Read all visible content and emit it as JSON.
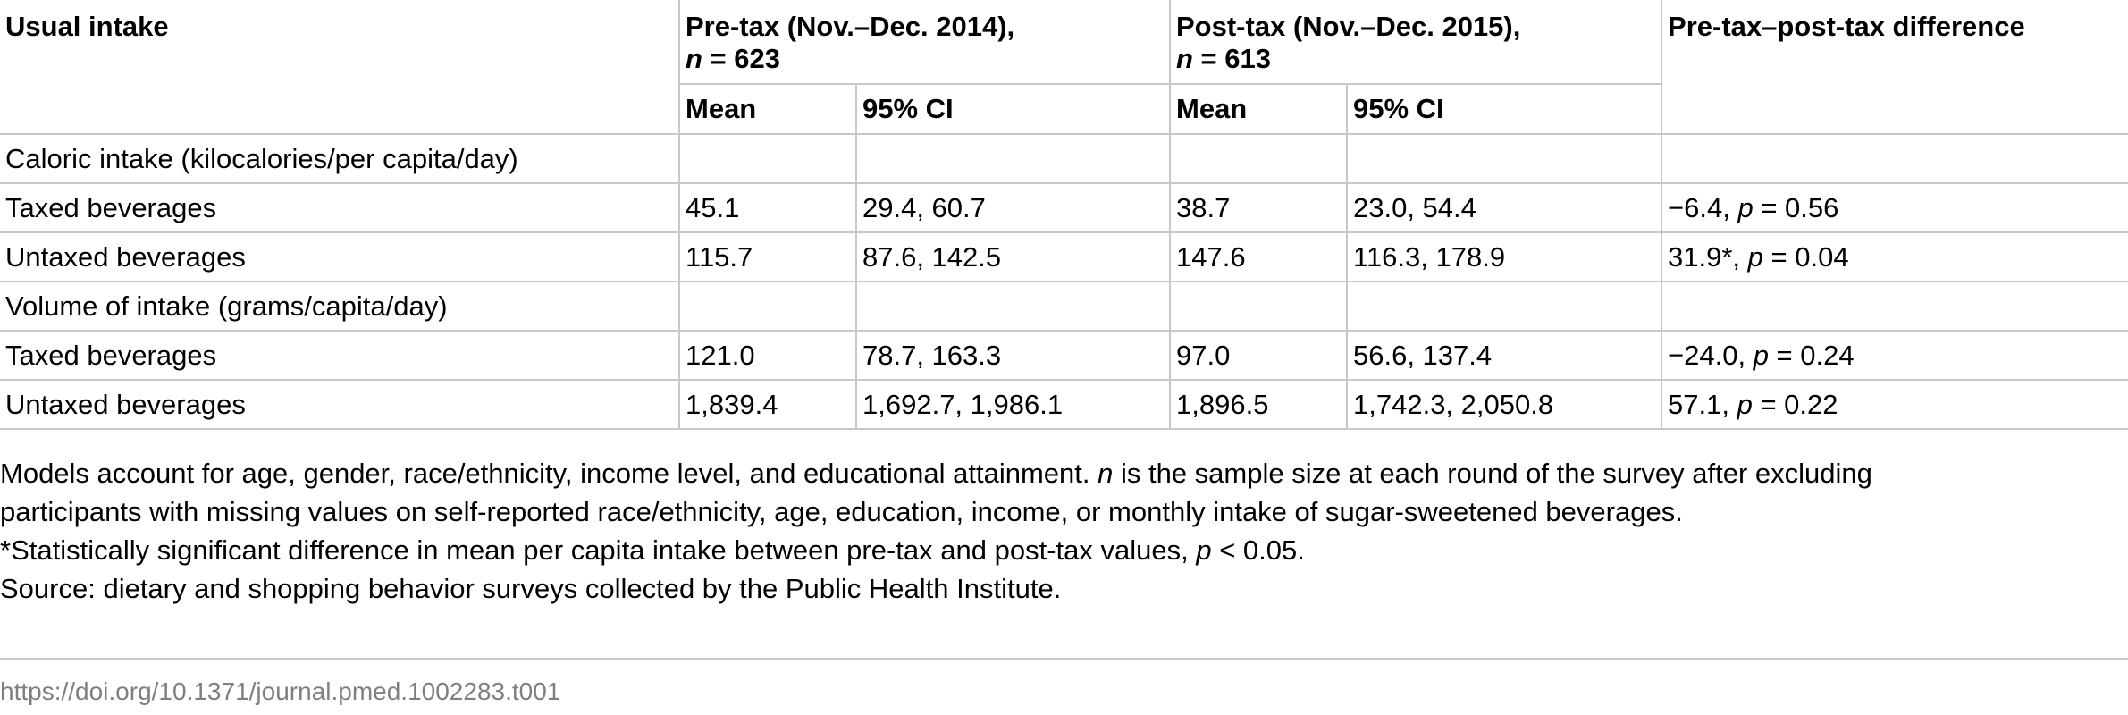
{
  "table": {
    "header": {
      "usual_intake": "Usual intake",
      "pretax": {
        "title": "Pre-tax (Nov.–Dec. 2014),",
        "n_label": "n",
        "n_value": " = 623"
      },
      "posttax": {
        "title": "Post-tax (Nov.–Dec. 2015),",
        "n_label": "n",
        "n_value": " = 613"
      },
      "difference": "Pre-tax–post-tax difference",
      "mean": "Mean",
      "ci": "95% CI"
    },
    "sections": [
      {
        "title": "Caloric intake (kilocalories/per capita/day)",
        "rows": [
          {
            "label": "Taxed beverages",
            "pre_mean": "45.1",
            "pre_ci": "29.4, 60.7",
            "post_mean": "38.7",
            "post_ci": "23.0, 54.4",
            "diff_value": "−6.4, ",
            "p_label": "p",
            "p_value": " = 0.56"
          },
          {
            "label": "Untaxed beverages",
            "pre_mean": "115.7",
            "pre_ci": "87.6, 142.5",
            "post_mean": "147.6",
            "post_ci": "116.3, 178.9",
            "diff_value": "31.9*, ",
            "p_label": "p",
            "p_value": " = 0.04"
          }
        ]
      },
      {
        "title": "Volume of intake (grams/capita/day)",
        "rows": [
          {
            "label": "Taxed beverages",
            "pre_mean": "121.0",
            "pre_ci": "78.7, 163.3",
            "post_mean": "97.0",
            "post_ci": "56.6, 137.4",
            "diff_value": "−24.0, ",
            "p_label": "p",
            "p_value": " = 0.24"
          },
          {
            "label": "Untaxed beverages",
            "pre_mean": "1,839.4",
            "pre_ci": "1,692.7, 1,986.1",
            "post_mean": "1,896.5",
            "post_ci": "1,742.3, 2,050.8",
            "diff_value": "57.1, ",
            "p_label": "p",
            "p_value": " = 0.22"
          }
        ]
      }
    ]
  },
  "notes": {
    "line1": "Models account for age, gender, race/ethnicity, income level, and educational attainment. ",
    "line1_n": "n",
    "line1_rest": " is the sample size at each round of the survey after excluding",
    "line2": "participants with missing values on self-reported race/ethnicity, age, education, income, or monthly intake of sugar-sweetened beverages.",
    "line3": "*Statistically significant difference in mean per capita intake between pre-tax and post-tax values, ",
    "line3_p": "p",
    "line3_rest": " < 0.05.",
    "line4": "Source: dietary and shopping behavior surveys collected by the Public Health Institute."
  },
  "doi_link": "https://doi.org/10.1371/journal.pmed.1002283.t001"
}
